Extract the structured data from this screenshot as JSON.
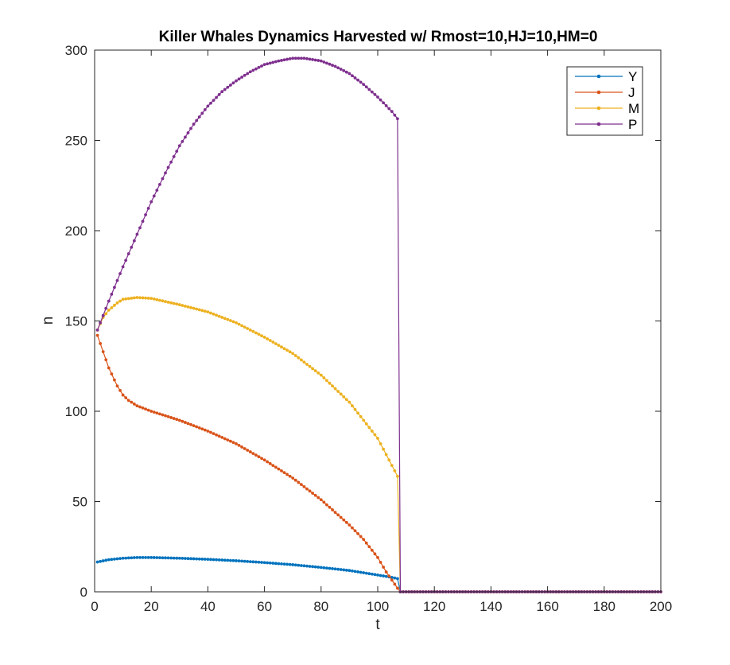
{
  "chart_data": {
    "type": "line",
    "title": "Killer Whales Dynamics Harvested w/ Rmost=10,HJ=10,HM=0",
    "xlabel": "t",
    "ylabel": "n",
    "xlim": [
      0,
      200
    ],
    "ylim": [
      0,
      300
    ],
    "xticks": [
      0,
      20,
      40,
      60,
      80,
      100,
      120,
      140,
      160,
      180,
      200
    ],
    "yticks": [
      0,
      50,
      100,
      150,
      200,
      250,
      300
    ],
    "grid": false,
    "legend_position": "top-right",
    "marker": "dot",
    "series": [
      {
        "name": "Y",
        "color": "#0072BD",
        "x": [
          1,
          5,
          10,
          15,
          20,
          30,
          40,
          50,
          60,
          70,
          80,
          90,
          100,
          105,
          107,
          108,
          200
        ],
        "y": [
          16.5,
          17.8,
          18.6,
          19.0,
          19.0,
          18.6,
          18.0,
          17.2,
          16.2,
          15.0,
          13.5,
          11.8,
          9.3,
          8.0,
          7.3,
          0,
          0
        ]
      },
      {
        "name": "J",
        "color": "#D95319",
        "x": [
          1,
          3,
          5,
          8,
          10,
          12,
          15,
          20,
          25,
          30,
          40,
          50,
          60,
          70,
          80,
          90,
          95,
          100,
          103,
          105,
          107,
          108,
          200
        ],
        "y": [
          142,
          133,
          124,
          114,
          109,
          106,
          103,
          100,
          97.5,
          95,
          89,
          82,
          73,
          63,
          51,
          37,
          29,
          19,
          11,
          6.5,
          2,
          0,
          0
        ]
      },
      {
        "name": "M",
        "color": "#EDB120",
        "x": [
          1,
          3,
          5,
          8,
          10,
          15,
          20,
          30,
          40,
          50,
          60,
          70,
          80,
          90,
          100,
          105,
          107,
          108,
          200
        ],
        "y": [
          145,
          152,
          156,
          160,
          162,
          163,
          162.5,
          159,
          155,
          149,
          141,
          132,
          120,
          105,
          85,
          70,
          64,
          0,
          0
        ]
      },
      {
        "name": "P",
        "color": "#7E2F8E",
        "x": [
          1,
          5,
          10,
          15,
          20,
          25,
          30,
          35,
          40,
          45,
          50,
          55,
          60,
          65,
          70,
          74,
          80,
          85,
          90,
          95,
          100,
          105,
          107,
          108,
          200
        ],
        "y": [
          145,
          161,
          180,
          198,
          216,
          232,
          247,
          259,
          269,
          277,
          283,
          288,
          292,
          294,
          295.5,
          295.5,
          294,
          291,
          287,
          281,
          274,
          266,
          262,
          0,
          0
        ]
      }
    ]
  }
}
